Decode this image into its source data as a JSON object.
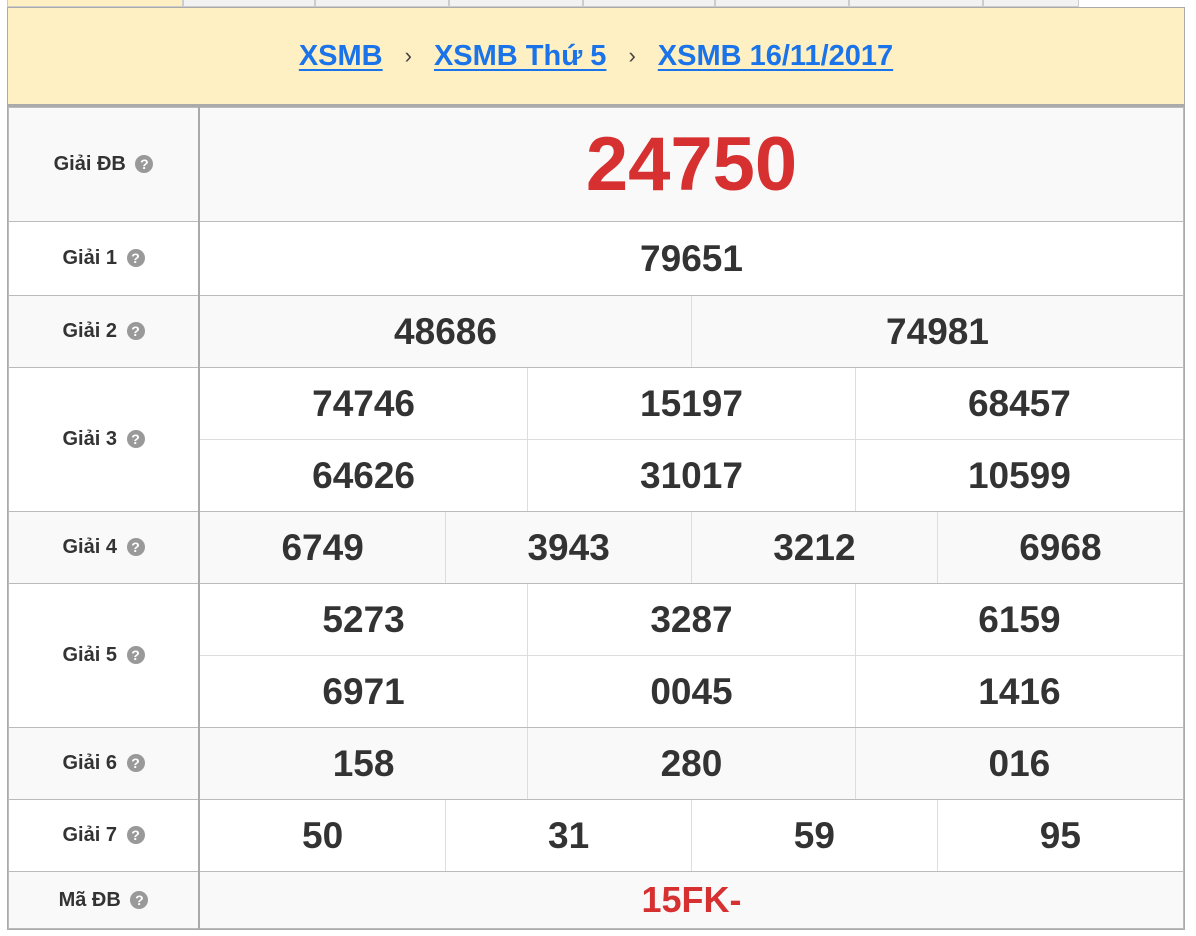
{
  "breadcrumb": [
    {
      "label": "XSMB"
    },
    {
      "label": "XSMB Thứ 5"
    },
    {
      "label": "XSMB 16/11/2017"
    }
  ],
  "breadcrumb_separator": "›",
  "help_icon": "?",
  "colors": {
    "header_bg": "#fef0c2",
    "link": "#1a73e8",
    "special": "#d63031"
  },
  "prizes": {
    "db": {
      "label": "Giải ĐB",
      "values": [
        "24750"
      ]
    },
    "g1": {
      "label": "Giải 1",
      "values": [
        "79651"
      ]
    },
    "g2": {
      "label": "Giải 2",
      "values": [
        "48686",
        "74981"
      ]
    },
    "g3": {
      "label": "Giải 3",
      "values": [
        "74746",
        "15197",
        "68457",
        "64626",
        "31017",
        "10599"
      ]
    },
    "g4": {
      "label": "Giải 4",
      "values": [
        "6749",
        "3943",
        "3212",
        "6968"
      ]
    },
    "g5": {
      "label": "Giải 5",
      "values": [
        "5273",
        "3287",
        "6159",
        "6971",
        "0045",
        "1416"
      ]
    },
    "g6": {
      "label": "Giải 6",
      "values": [
        "158",
        "280",
        "016"
      ]
    },
    "g7": {
      "label": "Giải 7",
      "values": [
        "50",
        "31",
        "59",
        "95"
      ]
    },
    "ma": {
      "label": "Mã ĐB",
      "values": [
        "15FK-"
      ]
    }
  }
}
